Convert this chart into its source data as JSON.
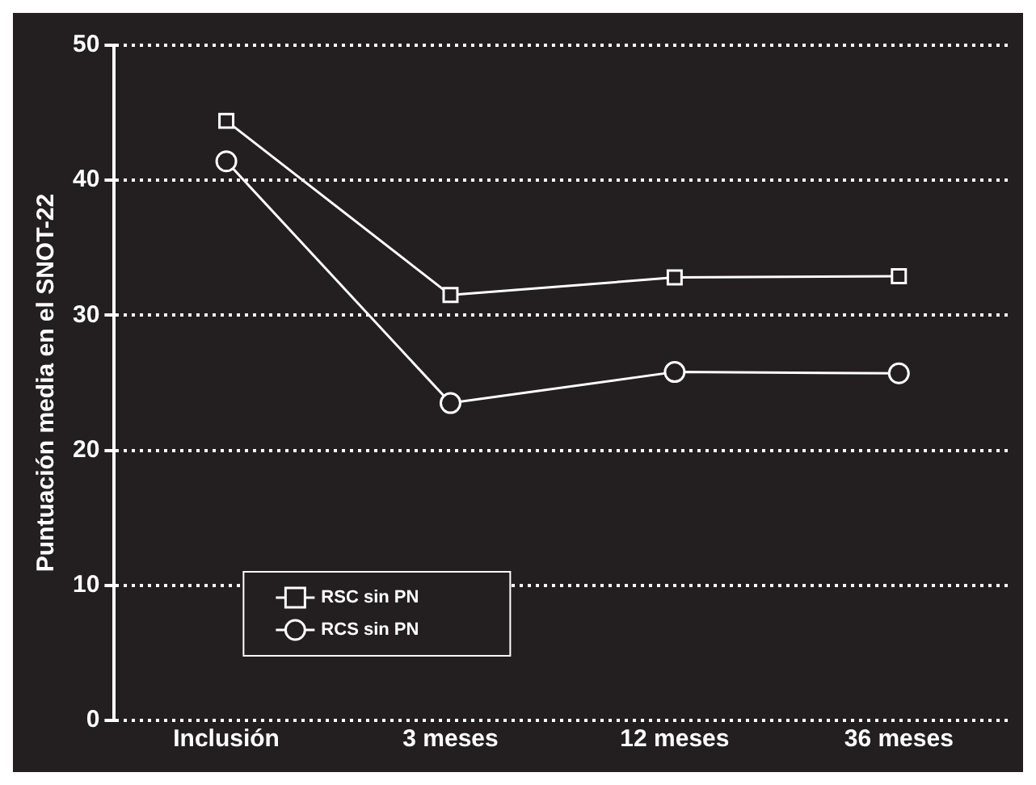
{
  "chart_data": {
    "type": "line",
    "ylabel": "Puntuación media en el SNOT-22",
    "categories": [
      "Inclusión",
      "3 meses",
      "12 meses",
      "36 meses"
    ],
    "series": [
      {
        "name": "RSC sin PN",
        "color": "#ffffff",
        "marker": "square",
        "values": [
          44.4,
          31.5,
          32.8,
          32.9
        ]
      },
      {
        "name": "RCS sin PN",
        "color": "#ffffff",
        "marker": "circle",
        "values": [
          41.4,
          23.5,
          25.8,
          25.7
        ]
      }
    ],
    "ylim": [
      0,
      50
    ],
    "yticks": [
      0,
      10,
      20,
      30,
      40,
      50
    ],
    "grid": "y",
    "legend": "bottom left",
    "line_style": "solid"
  }
}
